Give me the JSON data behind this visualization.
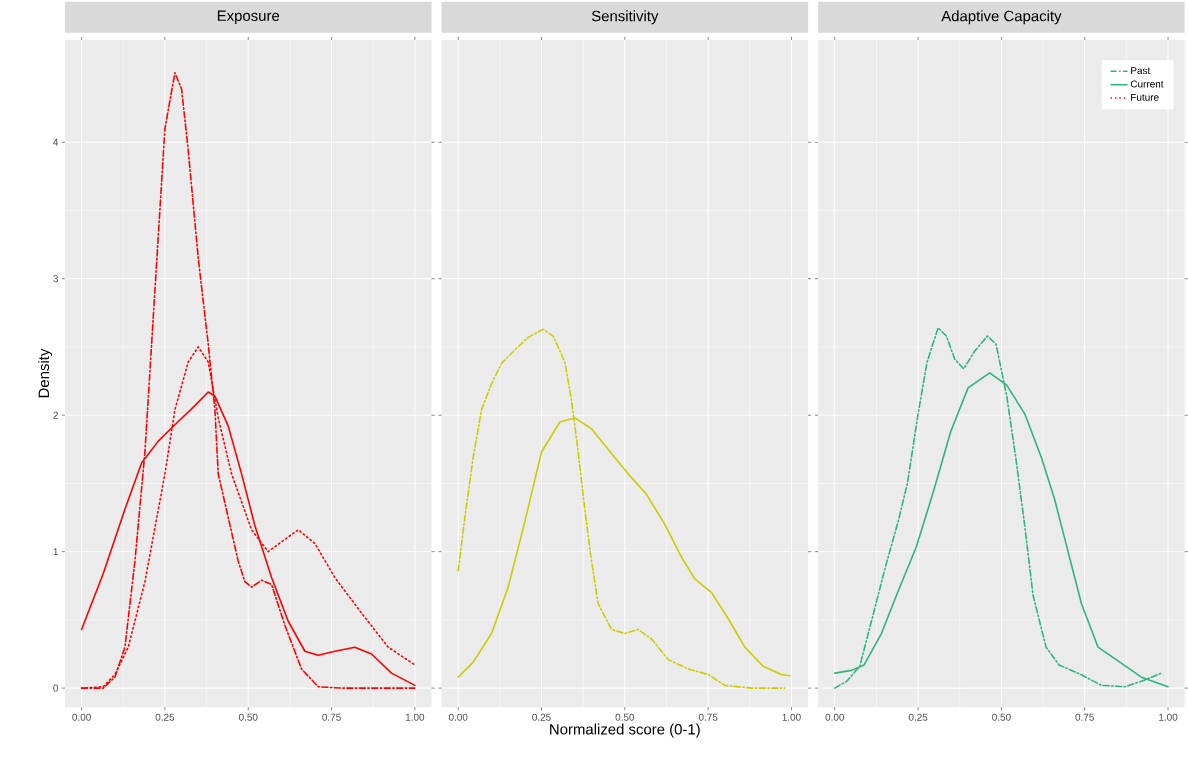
{
  "chart_data": [
    {
      "type": "line",
      "title": "Exposure",
      "ylabel": "Density",
      "xlim": [
        -0.05,
        1.05
      ],
      "ylim": [
        -0.14,
        4.75
      ],
      "xticks": [
        {
          "value": 0,
          "label": "0.00"
        },
        {
          "value": 0.25,
          "label": "0.25"
        },
        {
          "value": 0.5,
          "label": "0.50"
        },
        {
          "value": 0.75,
          "label": "0.75"
        },
        {
          "value": 1,
          "label": "1.00"
        }
      ],
      "yticks": [
        0,
        1,
        2,
        3,
        4
      ],
      "grid": true,
      "series": [
        {
          "color": "#ff0000",
          "line_style": "dashed",
          "x": [
            0,
            0.065,
            0.1,
            0.13,
            0.16,
            0.19,
            0.21,
            0.23,
            0.25,
            0.28,
            0.3,
            0.32,
            0.35,
            0.38,
            0.4,
            0.41,
            0.44,
            0.47,
            0.49,
            0.51,
            0.54,
            0.57,
            0.61,
            0.66,
            0.71,
            0.78,
            1.0
          ],
          "values": [
            0,
            0,
            0.08,
            0.3,
            0.93,
            1.73,
            2.52,
            3.31,
            4.1,
            4.51,
            4.39,
            3.94,
            3.15,
            2.52,
            2.04,
            1.57,
            1.25,
            0.93,
            0.78,
            0.74,
            0.79,
            0.76,
            0.46,
            0.14,
            0.01,
            0,
            0
          ]
        },
        {
          "color": "#ff0000",
          "line_style": "solid",
          "x": [
            0,
            0.065,
            0.13,
            0.18,
            0.23,
            0.28,
            0.34,
            0.38,
            0.4,
            0.44,
            0.48,
            0.52,
            0.57,
            0.62,
            0.67,
            0.71,
            0.76,
            0.82,
            0.87,
            0.93,
            1.0
          ],
          "values": [
            0.43,
            0.84,
            1.31,
            1.65,
            1.81,
            1.93,
            2.07,
            2.17,
            2.14,
            1.92,
            1.57,
            1.19,
            0.81,
            0.49,
            0.27,
            0.24,
            0.27,
            0.3,
            0.25,
            0.11,
            0.02
          ]
        },
        {
          "name": "Future",
          "color": "#ff0000",
          "line_style": "dotted",
          "x": [
            0,
            0.065,
            0.1,
            0.14,
            0.19,
            0.25,
            0.28,
            0.32,
            0.35,
            0.38,
            0.41,
            0.45,
            0.51,
            0.56,
            0.61,
            0.65,
            0.7,
            0.76,
            0.84,
            0.92,
            1.0
          ],
          "values": [
            0,
            0.01,
            0.1,
            0.3,
            0.78,
            1.57,
            2.04,
            2.39,
            2.5,
            2.39,
            1.98,
            1.57,
            1.16,
            1.0,
            1.09,
            1.16,
            1.06,
            0.81,
            0.55,
            0.3,
            0.17
          ]
        }
      ]
    },
    {
      "type": "line",
      "title": "Sensitivity",
      "xlabel": "Normalized score (0-1)",
      "xlim": [
        -0.05,
        1.05
      ],
      "ylim": [
        -0.14,
        4.75
      ],
      "xticks": [
        {
          "value": 0,
          "label": "0.00"
        },
        {
          "value": 0.25,
          "label": "0.25"
        },
        {
          "value": 0.5,
          "label": "0.50"
        },
        {
          "value": 0.75,
          "label": "0.75"
        },
        {
          "value": 1,
          "label": "1.00"
        }
      ],
      "yticks": [
        0,
        1,
        2,
        3,
        4
      ],
      "grid": true,
      "tick_labels": "x",
      "series": [
        {
          "color": "#cccc00",
          "line_style": "dashed",
          "x": [
            0,
            0.02,
            0.045,
            0.07,
            0.1,
            0.13,
            0.175,
            0.21,
            0.255,
            0.285,
            0.32,
            0.34,
            0.36,
            0.38,
            0.4,
            0.42,
            0.46,
            0.5,
            0.54,
            0.58,
            0.63,
            0.69,
            0.75,
            0.8,
            0.88,
            0.98
          ],
          "values": [
            0.86,
            1.25,
            1.69,
            2.04,
            2.23,
            2.38,
            2.49,
            2.57,
            2.63,
            2.58,
            2.39,
            2.11,
            1.73,
            1.31,
            0.93,
            0.62,
            0.43,
            0.4,
            0.43,
            0.36,
            0.21,
            0.14,
            0.1,
            0.02,
            0,
            0
          ]
        },
        {
          "color": "#cccc00",
          "line_style": "solid",
          "x": [
            0,
            0.045,
            0.1,
            0.15,
            0.2,
            0.25,
            0.305,
            0.35,
            0.4,
            0.46,
            0.51,
            0.565,
            0.62,
            0.67,
            0.71,
            0.76,
            0.81,
            0.86,
            0.915,
            0.97,
            0.995
          ],
          "values": [
            0.08,
            0.19,
            0.4,
            0.74,
            1.22,
            1.73,
            1.95,
            1.98,
            1.9,
            1.72,
            1.57,
            1.42,
            1.2,
            0.96,
            0.8,
            0.7,
            0.51,
            0.3,
            0.16,
            0.1,
            0.09
          ]
        }
      ]
    },
    {
      "type": "line",
      "title": "Adaptive Capacity",
      "xlim": [
        -0.05,
        1.05
      ],
      "ylim": [
        -0.14,
        4.75
      ],
      "xticks": [
        {
          "value": 0,
          "label": "0.00"
        },
        {
          "value": 0.25,
          "label": "0.25"
        },
        {
          "value": 0.5,
          "label": "0.50"
        },
        {
          "value": 0.75,
          "label": "0.75"
        },
        {
          "value": 1,
          "label": "1.00"
        }
      ],
      "yticks": [
        0,
        1,
        2,
        3,
        4
      ],
      "grid": true,
      "tick_labels": "x",
      "legend": "top right",
      "series": [
        {
          "name": "Past",
          "color": "#2eb47c",
          "line_style": "dashed",
          "x": [
            0,
            0.036,
            0.075,
            0.11,
            0.15,
            0.19,
            0.218,
            0.25,
            0.277,
            0.31,
            0.335,
            0.36,
            0.387,
            0.42,
            0.458,
            0.484,
            0.516,
            0.543,
            0.57,
            0.595,
            0.634,
            0.673,
            0.738,
            0.8,
            0.87,
            0.92,
            0.98
          ],
          "values": [
            0,
            0.05,
            0.16,
            0.49,
            0.87,
            1.22,
            1.5,
            2.01,
            2.39,
            2.64,
            2.58,
            2.41,
            2.34,
            2.47,
            2.58,
            2.52,
            2.14,
            1.69,
            1.19,
            0.68,
            0.3,
            0.17,
            0.1,
            0.02,
            0.01,
            0.05,
            0.11
          ]
        },
        {
          "name": "Current",
          "color": "#2eb47c",
          "line_style": "solid",
          "x": [
            0,
            0.05,
            0.088,
            0.14,
            0.19,
            0.244,
            0.296,
            0.348,
            0.4,
            0.465,
            0.516,
            0.57,
            0.62,
            0.66,
            0.7,
            0.74,
            0.79,
            0.855,
            0.92,
            1.0
          ],
          "values": [
            0.11,
            0.13,
            0.17,
            0.4,
            0.71,
            1.03,
            1.44,
            1.88,
            2.2,
            2.31,
            2.22,
            2.01,
            1.69,
            1.38,
            1.0,
            0.62,
            0.3,
            0.19,
            0.08,
            0.01
          ]
        }
      ]
    }
  ]
}
